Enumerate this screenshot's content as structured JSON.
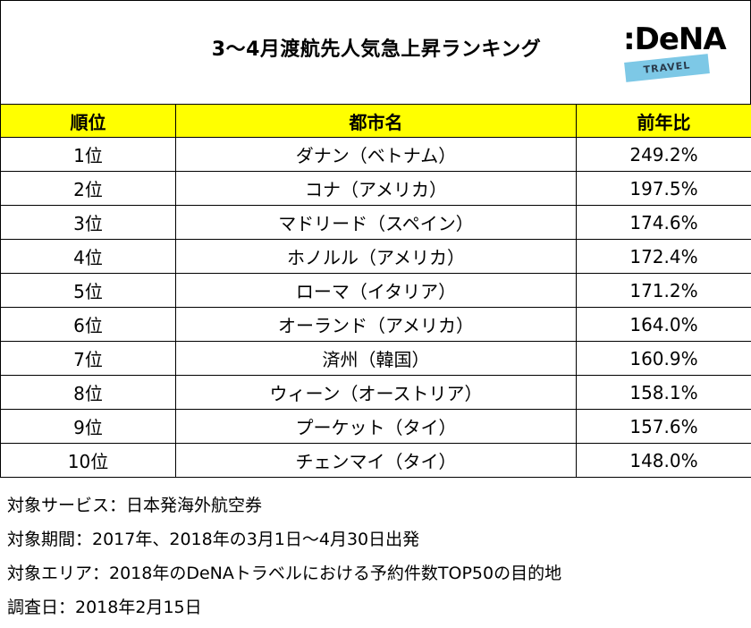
{
  "header": {
    "title": "3～4月渡航先人気急上昇ランキング",
    "logo_text": ":DeNA",
    "logo_tag": "TRAVEL",
    "logo_tag_color": "#7dc8e6"
  },
  "table": {
    "header_color": "#ffff00",
    "columns": [
      "順位",
      "都市名",
      "前年比"
    ],
    "rows": [
      {
        "rank": "1位",
        "city": "ダナン（ベトナム）",
        "yoy": "249.2%"
      },
      {
        "rank": "2位",
        "city": "コナ（アメリカ）",
        "yoy": "197.5%"
      },
      {
        "rank": "3位",
        "city": "マドリード（スペイン）",
        "yoy": "174.6%"
      },
      {
        "rank": "4位",
        "city": "ホノルル（アメリカ）",
        "yoy": "172.4%"
      },
      {
        "rank": "5位",
        "city": "ローマ（イタリア）",
        "yoy": "171.2%"
      },
      {
        "rank": "6位",
        "city": "オーランド（アメリカ）",
        "yoy": "164.0%"
      },
      {
        "rank": "7位",
        "city": "済州（韓国）",
        "yoy": "160.9%"
      },
      {
        "rank": "8位",
        "city": "ウィーン（オーストリア）",
        "yoy": "158.1%"
      },
      {
        "rank": "9位",
        "city": "プーケット（タイ）",
        "yoy": "157.6%"
      },
      {
        "rank": "10位",
        "city": "チェンマイ（タイ）",
        "yoy": "148.0%"
      }
    ]
  },
  "notes": [
    "対象サービス：日本発海外航空券",
    "対象期間：2017年、2018年の3月1日～4月30日出発",
    "対象エリア：2018年のDeNAトラベルにおける予約件数TOP50の目的地",
    "調査日：2018年2月15日"
  ]
}
